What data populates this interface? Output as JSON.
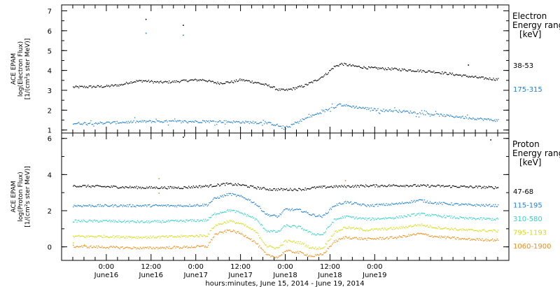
{
  "chart_data": [
    {
      "type": "scatter",
      "panel": "electron",
      "ylabel_lines": [
        "ACE EPAM",
        "log(Electron Flux)",
        "[1/(cm²s ster MeV)]"
      ],
      "yticks": [
        "1",
        "2",
        "3",
        "4",
        "5",
        "6",
        "7"
      ],
      "ylim": [
        0.85,
        7.3
      ],
      "legend_title": [
        "Electron",
        "Energy ranges"
      ],
      "legend_unit": "[keV]",
      "series": [
        {
          "name": "38-53",
          "color": "#000000",
          "profile": [
            [
              -9,
              3.18
            ],
            [
              -4,
              3.2
            ],
            [
              0,
              3.22
            ],
            [
              4,
              3.3
            ],
            [
              6,
              3.42
            ],
            [
              8,
              3.48
            ],
            [
              10,
              3.5
            ],
            [
              14,
              3.42
            ],
            [
              18,
              3.45
            ],
            [
              22,
              3.52
            ],
            [
              26,
              3.55
            ],
            [
              28,
              3.45
            ],
            [
              30,
              3.38
            ],
            [
              34,
              3.45
            ],
            [
              36,
              3.55
            ],
            [
              40,
              3.42
            ],
            [
              44,
              3.22
            ],
            [
              46,
              3.05
            ],
            [
              48,
              3.02
            ],
            [
              50,
              3.1
            ],
            [
              53,
              3.25
            ],
            [
              56,
              3.5
            ],
            [
              59,
              3.85
            ],
            [
              61,
              4.2
            ],
            [
              63,
              4.35
            ],
            [
              66,
              4.25
            ],
            [
              70,
              4.15
            ],
            [
              76,
              4.1
            ],
            [
              80,
              4.05
            ],
            [
              88,
              3.95
            ],
            [
              94,
              3.8
            ],
            [
              100,
              3.65
            ],
            [
              105,
              3.57
            ]
          ],
          "outliers": [
            [
              10.5,
              6.6
            ],
            [
              20.5,
              6.3
            ],
            [
              97,
              4.3
            ]
          ]
        },
        {
          "name": "175-315",
          "color": "#1e7fd2",
          "profile": [
            [
              -9,
              1.35
            ],
            [
              0,
              1.38
            ],
            [
              10,
              1.45
            ],
            [
              20,
              1.45
            ],
            [
              30,
              1.45
            ],
            [
              40,
              1.4
            ],
            [
              44,
              1.35
            ],
            [
              46,
              1.25
            ],
            [
              47.5,
              1.1
            ],
            [
              49,
              1.2
            ],
            [
              52,
              1.5
            ],
            [
              56,
              1.8
            ],
            [
              60,
              2.1
            ],
            [
              62.5,
              2.3
            ],
            [
              66,
              2.2
            ],
            [
              72,
              2.05
            ],
            [
              80,
              1.95
            ],
            [
              88,
              1.8
            ],
            [
              96,
              1.65
            ],
            [
              105,
              1.5
            ]
          ],
          "outliers": [
            [
              10.5,
              5.9
            ],
            [
              20.5,
              5.8
            ]
          ]
        }
      ]
    },
    {
      "type": "scatter",
      "panel": "proton",
      "ylabel_lines": [
        "ACE EPAM",
        "log(Proton Flux)",
        "[1/(cm²s ster MeV)]"
      ],
      "yticks": [
        "0",
        "2",
        "4",
        "6"
      ],
      "ylim": [
        -0.75,
        6.3
      ],
      "legend_title": [
        "Proton",
        "Energy ranges"
      ],
      "legend_unit": "[keV]",
      "series": [
        {
          "name": "47-68",
          "color": "#000000",
          "profile": [
            [
              -9,
              3.4
            ],
            [
              0,
              3.35
            ],
            [
              10,
              3.3
            ],
            [
              20,
              3.3
            ],
            [
              28,
              3.4
            ],
            [
              30,
              3.45
            ],
            [
              32,
              3.5
            ],
            [
              36,
              3.45
            ],
            [
              40,
              3.3
            ],
            [
              44,
              3.2
            ],
            [
              48,
              3.2
            ],
            [
              52,
              3.2
            ],
            [
              56,
              3.3
            ],
            [
              60,
              3.35
            ],
            [
              70,
              3.4
            ],
            [
              80,
              3.42
            ],
            [
              90,
              3.38
            ],
            [
              105,
              3.3
            ]
          ],
          "outliers": [
            [
              20.5,
              6.1
            ],
            [
              103,
              5.95
            ]
          ]
        },
        {
          "name": "115-195",
          "color": "#1e7fd2",
          "profile": [
            [
              -9,
              2.3
            ],
            [
              0,
              2.3
            ],
            [
              10,
              2.3
            ],
            [
              20,
              2.3
            ],
            [
              27,
              2.35
            ],
            [
              29,
              2.7
            ],
            [
              33,
              2.95
            ],
            [
              36,
              2.8
            ],
            [
              38,
              2.65
            ],
            [
              40,
              2.4
            ],
            [
              43,
              1.8
            ],
            [
              46,
              1.7
            ],
            [
              48,
              2.1
            ],
            [
              52,
              2.05
            ],
            [
              55,
              1.8
            ],
            [
              58,
              1.7
            ],
            [
              61,
              2.3
            ],
            [
              64,
              2.5
            ],
            [
              70,
              2.3
            ],
            [
              78,
              2.4
            ],
            [
              84,
              2.6
            ],
            [
              88,
              2.45
            ],
            [
              96,
              2.35
            ],
            [
              105,
              2.3
            ]
          ],
          "outliers": []
        },
        {
          "name": "310-580",
          "color": "#30d2c8",
          "profile": [
            [
              -9,
              1.45
            ],
            [
              0,
              1.45
            ],
            [
              10,
              1.4
            ],
            [
              20,
              1.45
            ],
            [
              27,
              1.5
            ],
            [
              29,
              1.85
            ],
            [
              33,
              2.05
            ],
            [
              36,
              1.9
            ],
            [
              38,
              1.75
            ],
            [
              40,
              1.55
            ],
            [
              43,
              0.9
            ],
            [
              46,
              0.85
            ],
            [
              48,
              1.2
            ],
            [
              52,
              1.1
            ],
            [
              55,
              0.75
            ],
            [
              58,
              0.7
            ],
            [
              61,
              1.5
            ],
            [
              64,
              1.7
            ],
            [
              70,
              1.55
            ],
            [
              78,
              1.65
            ],
            [
              84,
              1.85
            ],
            [
              88,
              1.75
            ],
            [
              96,
              1.6
            ],
            [
              105,
              1.55
            ]
          ],
          "outliers": []
        },
        {
          "name": "795-1193",
          "color": "#d6dc14",
          "profile": [
            [
              -9,
              0.6
            ],
            [
              0,
              0.6
            ],
            [
              10,
              0.55
            ],
            [
              20,
              0.6
            ],
            [
              27,
              0.65
            ],
            [
              29,
              1.2
            ],
            [
              33,
              1.45
            ],
            [
              36,
              1.3
            ],
            [
              38,
              1.1
            ],
            [
              40,
              0.85
            ],
            [
              43,
              0.05
            ],
            [
              46,
              -0.05
            ],
            [
              48,
              0.35
            ],
            [
              52,
              0.25
            ],
            [
              55,
              -0.05
            ],
            [
              58,
              -0.05
            ],
            [
              61,
              0.8
            ],
            [
              64,
              1.1
            ],
            [
              70,
              0.95
            ],
            [
              78,
              1.05
            ],
            [
              84,
              1.25
            ],
            [
              88,
              1.1
            ],
            [
              96,
              0.95
            ],
            [
              105,
              0.9
            ]
          ],
          "outliers": [
            [
              -9,
              0.25
            ],
            [
              -6,
              0.15
            ]
          ]
        },
        {
          "name": "1060-1900",
          "color": "#f08c14",
          "profile": [
            [
              -9,
              0.05
            ],
            [
              0,
              0.0
            ],
            [
              10,
              -0.05
            ],
            [
              20,
              0.0
            ],
            [
              27,
              0.05
            ],
            [
              29,
              0.7
            ],
            [
              33,
              0.95
            ],
            [
              36,
              0.75
            ],
            [
              38,
              0.55
            ],
            [
              40,
              0.25
            ],
            [
              43,
              -0.45
            ],
            [
              46,
              -0.55
            ],
            [
              48,
              -0.2
            ],
            [
              52,
              -0.3
            ],
            [
              55,
              -0.5
            ],
            [
              58,
              -0.4
            ],
            [
              61,
              0.3
            ],
            [
              64,
              0.55
            ],
            [
              70,
              0.45
            ],
            [
              78,
              0.55
            ],
            [
              84,
              0.75
            ],
            [
              88,
              0.6
            ],
            [
              96,
              0.45
            ],
            [
              105,
              0.4
            ]
          ],
          "outliers": [
            [
              14,
              3.8
            ],
            [
              14,
              3.0
            ],
            [
              64,
              3.7
            ]
          ]
        }
      ]
    }
  ],
  "x_axis": {
    "xlim": [
      -12,
      108
    ],
    "tick_labels": [
      {
        "x": 0,
        "time": "0:00",
        "day": "June16"
      },
      {
        "x": 12,
        "time": "12:00",
        "day": "June16"
      },
      {
        "x": 24,
        "time": "0:00",
        "day": "June17"
      },
      {
        "x": 36,
        "time": "12:00",
        "day": "June17"
      },
      {
        "x": 48,
        "time": "0:00",
        "day": "June18"
      },
      {
        "x": 60,
        "time": "12:00",
        "day": "June18"
      },
      {
        "x": 72,
        "time": "0:00",
        "day": "June19"
      }
    ],
    "xlabel": "hours:minutes, June 15, 2014 - June 19, 2014"
  }
}
